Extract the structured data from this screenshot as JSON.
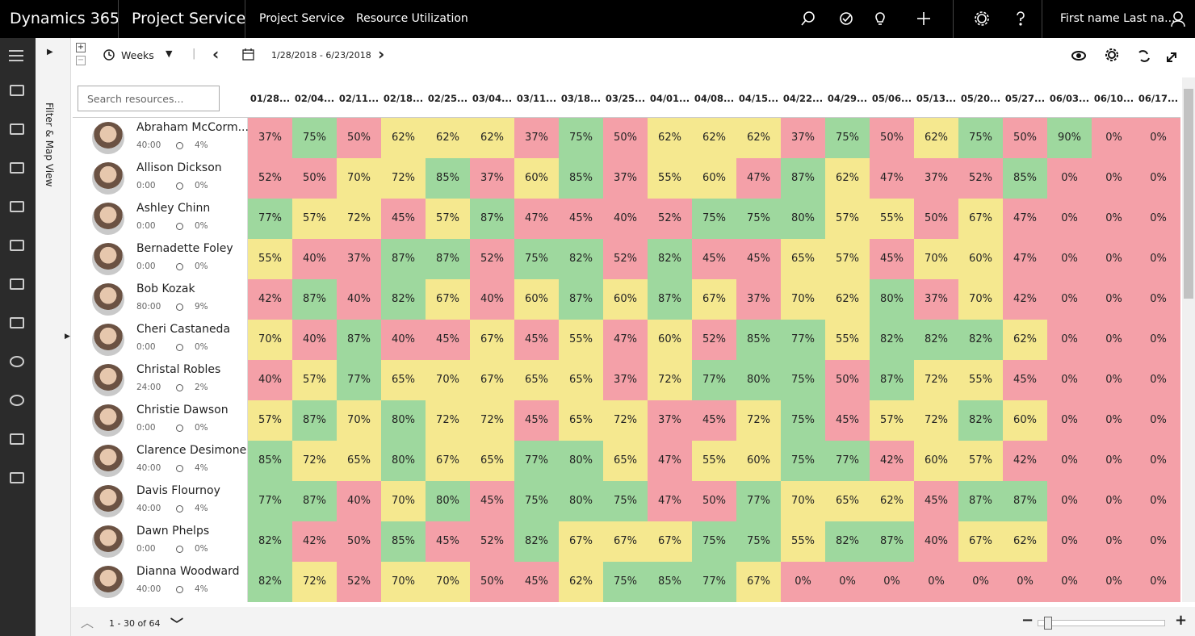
{
  "top_bar": {
    "brand": "Dynamics 365",
    "app": "Project Service",
    "breadcrumb": [
      "Project Service",
      "Resource Utilization"
    ],
    "user": "First name Last na..."
  },
  "filter_panel": {
    "label": "Filter & Map View"
  },
  "toolbar": {
    "period": "Weeks",
    "date_range": "1/28/2018 - 6/23/2018"
  },
  "grid": {
    "search_placeholder": "Search resources...",
    "columns": [
      "01/28...",
      "02/04...",
      "02/11...",
      "02/18...",
      "02/25...",
      "03/04...",
      "03/11...",
      "03/18...",
      "03/25...",
      "04/01...",
      "04/08...",
      "04/15...",
      "04/22...",
      "04/29...",
      "05/06...",
      "05/13...",
      "05/20...",
      "05/27...",
      "06/03...",
      "06/10...",
      "06/17..."
    ],
    "rows": [
      {
        "name": "Abraham McCorm...",
        "hours": "40:00",
        "percent": "4%",
        "cells": [
          "37%",
          "75%",
          "50%",
          "62%",
          "62%",
          "62%",
          "37%",
          "75%",
          "50%",
          "62%",
          "62%",
          "62%",
          "37%",
          "75%",
          "50%",
          "62%",
          "75%",
          "50%",
          "90%",
          "0%",
          "0%"
        ]
      },
      {
        "name": "Allison Dickson",
        "hours": "0:00",
        "percent": "0%",
        "cells": [
          "52%",
          "50%",
          "70%",
          "72%",
          "85%",
          "37%",
          "60%",
          "85%",
          "37%",
          "55%",
          "60%",
          "47%",
          "87%",
          "62%",
          "47%",
          "37%",
          "52%",
          "85%",
          "0%",
          "0%",
          "0%"
        ]
      },
      {
        "name": "Ashley Chinn",
        "hours": "0:00",
        "percent": "0%",
        "cells": [
          "77%",
          "57%",
          "72%",
          "45%",
          "57%",
          "87%",
          "47%",
          "45%",
          "40%",
          "52%",
          "75%",
          "75%",
          "80%",
          "57%",
          "55%",
          "50%",
          "67%",
          "47%",
          "0%",
          "0%",
          "0%"
        ]
      },
      {
        "name": "Bernadette Foley",
        "hours": "0:00",
        "percent": "0%",
        "cells": [
          "55%",
          "40%",
          "37%",
          "87%",
          "87%",
          "52%",
          "75%",
          "82%",
          "52%",
          "82%",
          "45%",
          "45%",
          "65%",
          "57%",
          "45%",
          "70%",
          "60%",
          "47%",
          "0%",
          "0%",
          "0%"
        ]
      },
      {
        "name": "Bob Kozak",
        "hours": "80:00",
        "percent": "9%",
        "cells": [
          "42%",
          "87%",
          "40%",
          "82%",
          "67%",
          "40%",
          "60%",
          "87%",
          "60%",
          "87%",
          "67%",
          "37%",
          "70%",
          "62%",
          "80%",
          "37%",
          "70%",
          "42%",
          "0%",
          "0%",
          "0%"
        ]
      },
      {
        "name": "Cheri Castaneda",
        "hours": "0:00",
        "percent": "0%",
        "cells": [
          "70%",
          "40%",
          "87%",
          "40%",
          "45%",
          "67%",
          "45%",
          "55%",
          "47%",
          "60%",
          "52%",
          "85%",
          "77%",
          "55%",
          "82%",
          "82%",
          "82%",
          "62%",
          "0%",
          "0%",
          "0%"
        ]
      },
      {
        "name": "Christal Robles",
        "hours": "24:00",
        "percent": "2%",
        "cells": [
          "40%",
          "57%",
          "77%",
          "65%",
          "70%",
          "67%",
          "65%",
          "65%",
          "37%",
          "72%",
          "77%",
          "80%",
          "75%",
          "50%",
          "87%",
          "72%",
          "55%",
          "45%",
          "0%",
          "0%",
          "0%"
        ]
      },
      {
        "name": "Christie Dawson",
        "hours": "0:00",
        "percent": "0%",
        "cells": [
          "57%",
          "87%",
          "70%",
          "80%",
          "72%",
          "72%",
          "45%",
          "65%",
          "72%",
          "37%",
          "45%",
          "72%",
          "75%",
          "45%",
          "57%",
          "72%",
          "82%",
          "60%",
          "0%",
          "0%",
          "0%"
        ]
      },
      {
        "name": "Clarence Desimone",
        "hours": "40:00",
        "percent": "4%",
        "cells": [
          "85%",
          "72%",
          "65%",
          "80%",
          "67%",
          "65%",
          "77%",
          "80%",
          "65%",
          "47%",
          "55%",
          "60%",
          "75%",
          "77%",
          "42%",
          "60%",
          "57%",
          "42%",
          "0%",
          "0%",
          "0%"
        ]
      },
      {
        "name": "Davis Flournoy",
        "hours": "40:00",
        "percent": "4%",
        "cells": [
          "77%",
          "87%",
          "40%",
          "70%",
          "80%",
          "45%",
          "75%",
          "80%",
          "75%",
          "47%",
          "50%",
          "77%",
          "70%",
          "65%",
          "62%",
          "45%",
          "87%",
          "87%",
          "0%",
          "0%",
          "0%"
        ]
      },
      {
        "name": "Dawn Phelps",
        "hours": "0:00",
        "percent": "0%",
        "cells": [
          "82%",
          "42%",
          "50%",
          "85%",
          "45%",
          "52%",
          "82%",
          "67%",
          "67%",
          "67%",
          "75%",
          "75%",
          "55%",
          "82%",
          "87%",
          "40%",
          "67%",
          "62%",
          "0%",
          "0%",
          "0%"
        ]
      },
      {
        "name": "Dianna Woodward",
        "hours": "40:00",
        "percent": "4%",
        "cells": [
          "82%",
          "72%",
          "52%",
          "70%",
          "70%",
          "50%",
          "45%",
          "62%",
          "75%",
          "85%",
          "77%",
          "67%",
          "0%",
          "0%",
          "0%",
          "0%",
          "0%",
          "0%",
          "0%",
          "0%",
          "0%"
        ]
      }
    ]
  },
  "footer": {
    "pagination": "1 - 30 of 64"
  }
}
